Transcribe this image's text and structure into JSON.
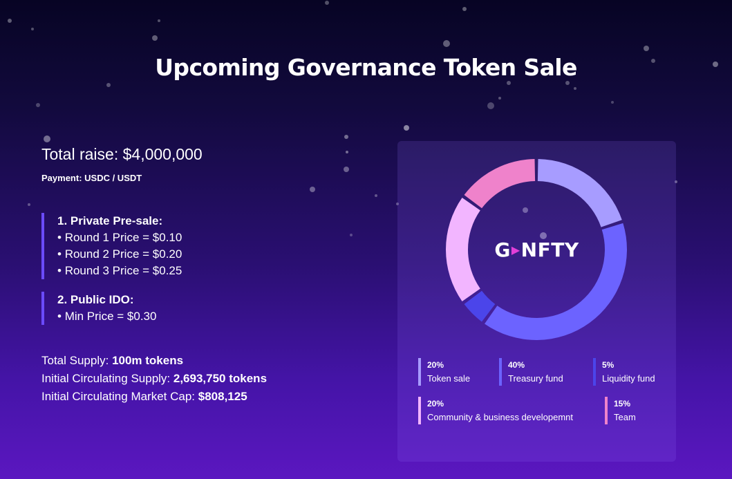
{
  "page": {
    "title": "Upcoming Governance Token Sale"
  },
  "sale": {
    "total_raise": "Total raise: $4,000,000",
    "payment": "Payment: USDC / USDT",
    "private_presale": {
      "heading": "1. Private Pre-sale:",
      "rounds": [
        "Round 1 Price = $0.10",
        "Round 2 Price = $0.20",
        "Round 3 Price = $0.25"
      ]
    },
    "public_ido": {
      "heading": "2. Public IDO:",
      "rounds": [
        "Min Price = $0.30"
      ]
    },
    "bullet": "•",
    "supply": {
      "total_label": "Total Supply: ",
      "total_value": "100m tokens",
      "circ_label": "Initial Circulating Supply: ",
      "circ_value": "2,693,750 tokens",
      "cap_label": "Initial Circulating Market Cap: ",
      "cap_value": "$808,125"
    }
  },
  "tokenomics": {
    "logo": {
      "prefix": "G",
      "play_glyph": "▶",
      "suffix": "NFTY"
    },
    "segments": [
      {
        "pct_label": "20%",
        "label": "Token sale",
        "value": 20,
        "color": "#a79cff"
      },
      {
        "pct_label": "40%",
        "label": "Treasury fund",
        "value": 40,
        "color": "#6c63ff"
      },
      {
        "pct_label": "5%",
        "label": "Liquidity fund",
        "value": 5,
        "color": "#4b45ea"
      },
      {
        "pct_label": "20%",
        "label": "Community & business developemnt",
        "value": 20,
        "color": "#f2b5ff"
      },
      {
        "pct_label": "15%",
        "label": "Team",
        "value": 15,
        "color": "#ef82cb"
      }
    ]
  }
}
